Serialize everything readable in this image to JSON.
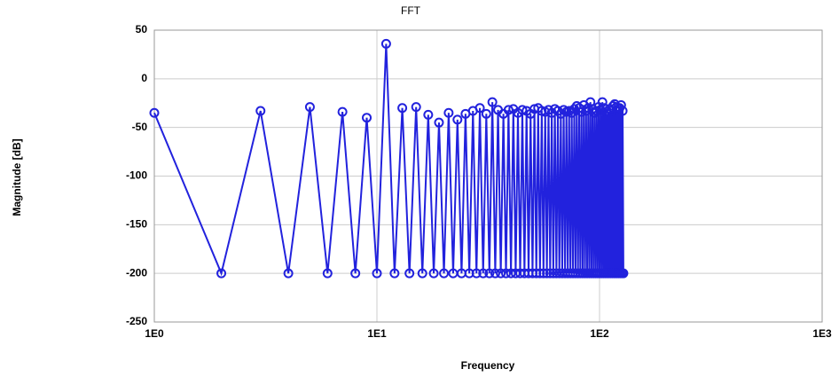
{
  "chart_data": {
    "type": "line",
    "title": "FFT",
    "x_label": "Frequency",
    "y_label": "Magnitude [dB]",
    "log_x": true,
    "grid": true,
    "xlim": [
      1,
      1000
    ],
    "ylim": [
      -250,
      50
    ],
    "xticks": [
      {
        "value": 1,
        "label": "1E0"
      },
      {
        "value": 10,
        "label": "1E1"
      },
      {
        "value": 100,
        "label": "1E2"
      },
      {
        "value": 1000,
        "label": "1E3"
      }
    ],
    "yticks": [
      -250,
      -200,
      -150,
      -100,
      -50,
      0,
      50
    ],
    "x": [
      1,
      2,
      3,
      4,
      5,
      6,
      7,
      8,
      9,
      10,
      11,
      12,
      13,
      14,
      15,
      16,
      17,
      18,
      19,
      20,
      21,
      22,
      23,
      24,
      25,
      26,
      27,
      28,
      29,
      30,
      31,
      32,
      33,
      34,
      35,
      36,
      37,
      38,
      39,
      40,
      41,
      42,
      43,
      44,
      45,
      46,
      47,
      48,
      49,
      50,
      51,
      52,
      53,
      54,
      55,
      56,
      57,
      58,
      59,
      60,
      61,
      62,
      63,
      64,
      65,
      66,
      67,
      68,
      69,
      70,
      71,
      72,
      73,
      74,
      75,
      76,
      77,
      78,
      79,
      80,
      81,
      82,
      83,
      84,
      85,
      86,
      87,
      88,
      89,
      90,
      91,
      92,
      93,
      94,
      95,
      96,
      97,
      98,
      99,
      100,
      101,
      102,
      103,
      104,
      105,
      106,
      107,
      108,
      109,
      110,
      111,
      112,
      113,
      114,
      115,
      116,
      117,
      118,
      119,
      120,
      121,
      122,
      123,
      124,
      125,
      126,
      127,
      128
    ],
    "series": [
      {
        "name": "FFT",
        "color": "#2222dd",
        "values": [
          -35,
          -200,
          -33,
          -200,
          -29,
          -200,
          -34,
          -200,
          -40,
          -200,
          36,
          -200,
          -30,
          -200,
          -29,
          -200,
          -37,
          -200,
          -45,
          -200,
          -35,
          -200,
          -42,
          -200,
          -36,
          -200,
          -33,
          -200,
          -30,
          -200,
          -36,
          -200,
          -24,
          -200,
          -32,
          -200,
          -36,
          -200,
          -32,
          -200,
          -31,
          -200,
          -35,
          -200,
          -32,
          -200,
          -33,
          -200,
          -36,
          -200,
          -31,
          -200,
          -30,
          -200,
          -33,
          -200,
          -34,
          -200,
          -32,
          -200,
          -35,
          -200,
          -31,
          -200,
          -33,
          -200,
          -36,
          -200,
          -32,
          -200,
          -34,
          -200,
          -33,
          -200,
          -35,
          -200,
          -31,
          -200,
          -28,
          -200,
          -30,
          -200,
          -34,
          -200,
          -27,
          -200,
          -33,
          -200,
          -30,
          -200,
          -24,
          -200,
          -31,
          -200,
          -35,
          -200,
          -33,
          -200,
          -29,
          -200,
          -32,
          -200,
          -24,
          -200,
          -30,
          -200,
          -34,
          -200,
          -36,
          -200,
          -31,
          -200,
          -33,
          -200,
          -28,
          -200,
          -26,
          -200,
          -29,
          -200,
          -33,
          -200,
          -30,
          -200,
          -27,
          -200,
          -33,
          -200
        ]
      }
    ]
  }
}
